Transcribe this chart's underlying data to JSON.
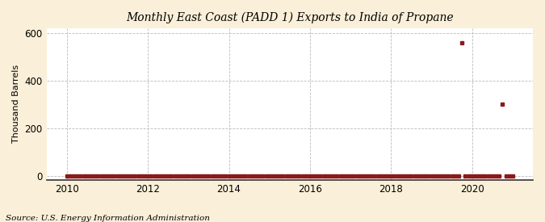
{
  "title": "East Coast (PADD 1) Exports to India of Propane",
  "title_line1": "Monthly",
  "ylabel": "Thousand Barrels",
  "source": "Source: U.S. Energy Information Administration",
  "background_color": "#faefd8",
  "plot_bg_color": "#ffffff",
  "marker_color": "#8b1a1a",
  "xlim": [
    2009.5,
    2021.5
  ],
  "ylim": [
    -15,
    620
  ],
  "yticks": [
    0,
    200,
    400,
    600
  ],
  "xticks": [
    2010,
    2012,
    2014,
    2016,
    2018,
    2020
  ],
  "data_x": [
    2010.0,
    2010.083,
    2010.167,
    2010.25,
    2010.333,
    2010.417,
    2010.5,
    2010.583,
    2010.667,
    2010.75,
    2010.833,
    2010.917,
    2011.0,
    2011.083,
    2011.167,
    2011.25,
    2011.333,
    2011.417,
    2011.5,
    2011.583,
    2011.667,
    2011.75,
    2011.833,
    2011.917,
    2012.0,
    2012.083,
    2012.167,
    2012.25,
    2012.333,
    2012.417,
    2012.5,
    2012.583,
    2012.667,
    2012.75,
    2012.833,
    2012.917,
    2013.0,
    2013.083,
    2013.167,
    2013.25,
    2013.333,
    2013.417,
    2013.5,
    2013.583,
    2013.667,
    2013.75,
    2013.833,
    2013.917,
    2014.0,
    2014.083,
    2014.167,
    2014.25,
    2014.333,
    2014.417,
    2014.5,
    2014.583,
    2014.667,
    2014.75,
    2014.833,
    2014.917,
    2015.0,
    2015.083,
    2015.167,
    2015.25,
    2015.333,
    2015.417,
    2015.5,
    2015.583,
    2015.667,
    2015.75,
    2015.833,
    2015.917,
    2016.0,
    2016.083,
    2016.167,
    2016.25,
    2016.333,
    2016.417,
    2016.5,
    2016.583,
    2016.667,
    2016.75,
    2016.833,
    2016.917,
    2017.0,
    2017.083,
    2017.167,
    2017.25,
    2017.333,
    2017.417,
    2017.5,
    2017.583,
    2017.667,
    2017.75,
    2017.833,
    2017.917,
    2018.0,
    2018.083,
    2018.167,
    2018.25,
    2018.333,
    2018.417,
    2018.5,
    2018.583,
    2018.667,
    2018.75,
    2018.833,
    2018.917,
    2019.0,
    2019.083,
    2019.167,
    2019.25,
    2019.333,
    2019.417,
    2019.5,
    2019.583,
    2019.667,
    2019.75,
    2019.833,
    2019.917,
    2020.0,
    2020.083,
    2020.167,
    2020.25,
    2020.333,
    2020.417,
    2020.5,
    2020.583,
    2020.667,
    2020.75,
    2020.833,
    2020.917,
    2021.0
  ],
  "data_y": [
    0,
    0,
    0,
    0,
    0,
    0,
    0,
    0,
    0,
    0,
    0,
    0,
    1,
    2,
    1,
    3,
    2,
    1,
    1,
    2,
    1,
    1,
    0,
    0,
    0,
    0,
    2,
    3,
    2,
    1,
    1,
    1,
    1,
    0,
    0,
    0,
    0,
    1,
    1,
    0,
    2,
    0,
    0,
    0,
    1,
    0,
    0,
    0,
    0,
    0,
    1,
    0,
    0,
    2,
    1,
    0,
    0,
    0,
    0,
    0,
    0,
    0,
    0,
    0,
    0,
    0,
    0,
    0,
    0,
    0,
    0,
    0,
    0,
    0,
    0,
    0,
    0,
    0,
    0,
    0,
    0,
    0,
    0,
    0,
    0,
    0,
    0,
    0,
    0,
    0,
    0,
    0,
    0,
    0,
    0,
    0,
    0,
    0,
    0,
    0,
    0,
    0,
    0,
    0,
    0,
    0,
    0,
    0,
    0,
    0,
    0,
    0,
    0,
    0,
    0,
    0,
    0,
    557,
    0,
    0,
    0,
    0,
    0,
    0,
    0,
    0,
    0,
    0,
    1,
    302,
    0,
    0,
    0
  ]
}
